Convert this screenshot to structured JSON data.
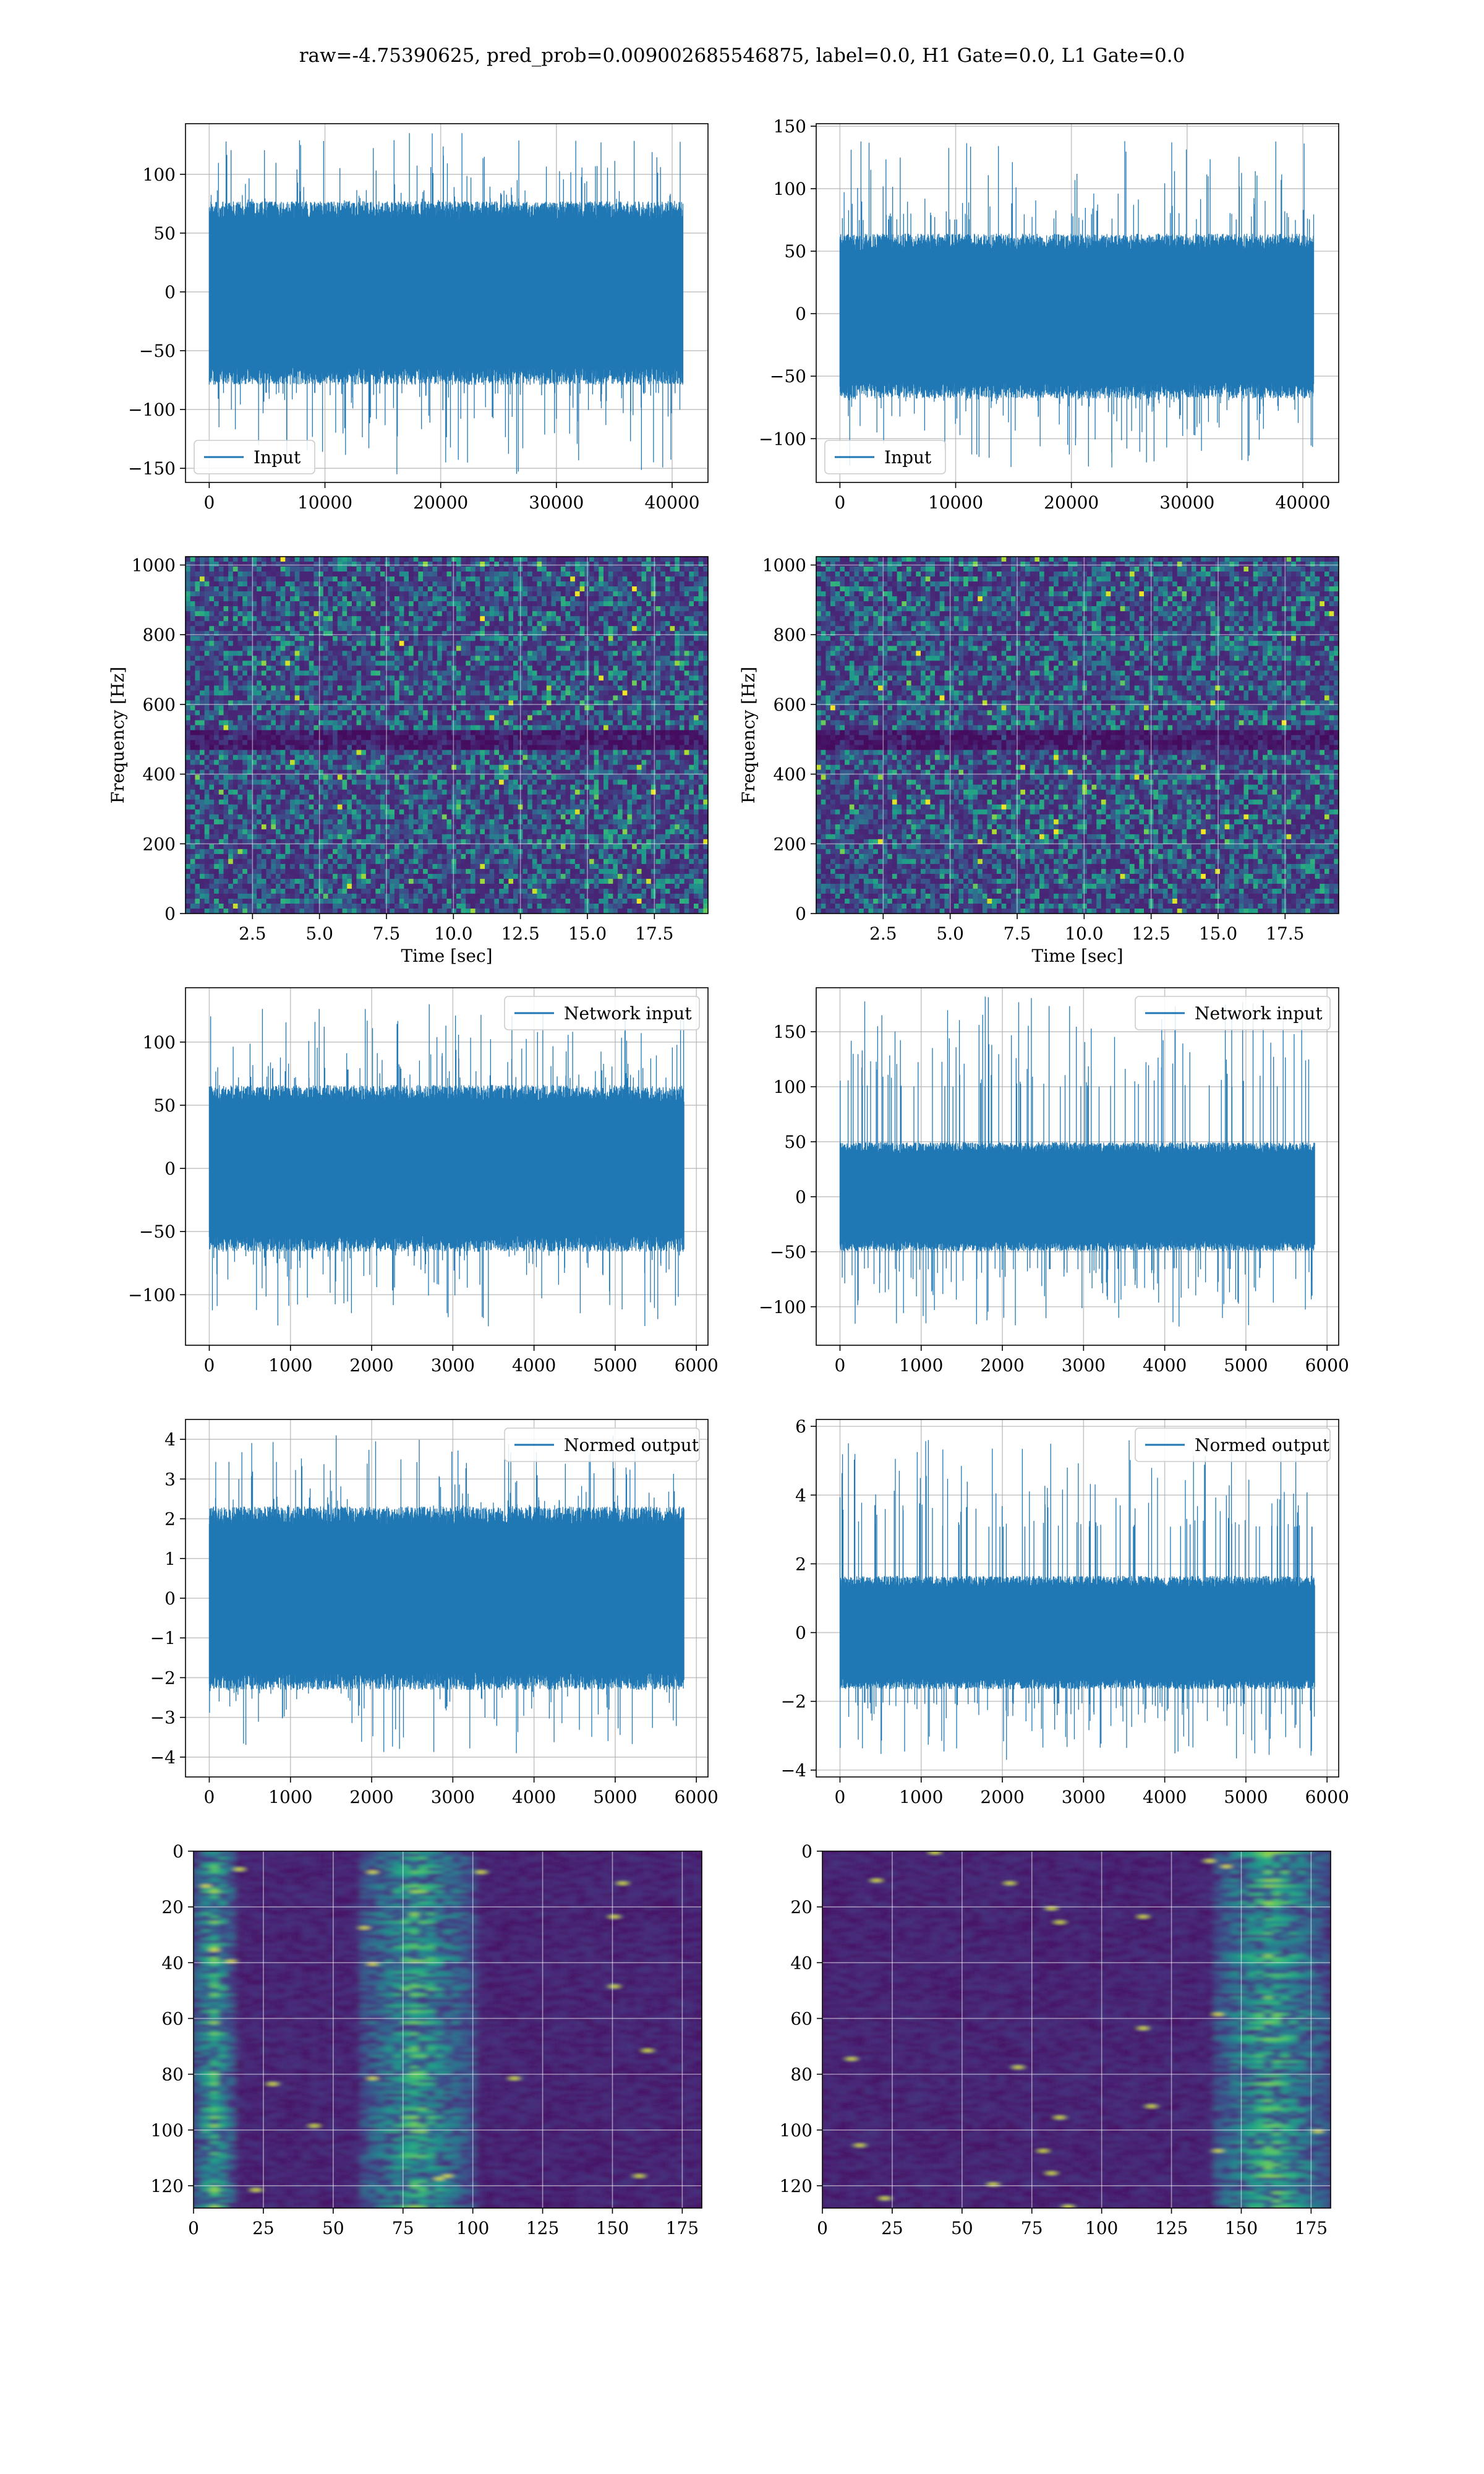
{
  "figure": {
    "suptitle": "raw=-4.75390625, pred_prob=0.009002685546875, label=0.0, H1 Gate=0.0, L1 Gate=0.0"
  },
  "colors": {
    "line": "#1f77b4",
    "grid": "#b0b0b0",
    "viridis_dark": "#440154",
    "viridis_mid": "#21918c",
    "viridis_bright": "#fde725"
  },
  "chart_data": [
    {
      "id": "raw-h1",
      "type": "line",
      "legend": "Input",
      "legend_loc": "lower-left",
      "xlim": [
        -2050,
        43100
      ],
      "ylim": [
        -162,
        143
      ],
      "xticks": [
        0,
        10000,
        20000,
        30000,
        40000
      ],
      "yticks": [
        -150,
        -100,
        -50,
        0,
        50,
        100
      ],
      "xlabel": "",
      "ylabel": "",
      "grid": true,
      "signal": {
        "n": 40960,
        "band": [
          -72,
          70
        ],
        "peaks": [
          -155,
          135
        ]
      }
    },
    {
      "id": "raw-l1",
      "type": "line",
      "legend": "Input",
      "legend_loc": "lower-left",
      "xlim": [
        -2050,
        43100
      ],
      "ylim": [
        -135,
        152
      ],
      "xticks": [
        0,
        10000,
        20000,
        30000,
        40000
      ],
      "yticks": [
        -100,
        -50,
        0,
        50,
        100,
        150
      ],
      "xlabel": "",
      "ylabel": "",
      "grid": true,
      "signal": {
        "n": 40960,
        "band": [
          -62,
          58
        ],
        "peaks": [
          -123,
          138
        ]
      }
    },
    {
      "id": "spec-h1",
      "type": "heatmap",
      "colormap": "viridis",
      "xlim": [
        0,
        19.5
      ],
      "ylim": [
        0,
        1024
      ],
      "xticks": [
        2.5,
        5.0,
        7.5,
        10.0,
        12.5,
        15.0,
        17.5
      ],
      "yticks": [
        0,
        200,
        400,
        600,
        800,
        1000
      ],
      "xlabel": "Time [sec]",
      "ylabel": "Frequency [Hz]",
      "grid": true,
      "dark_band_hz": [
        490,
        510
      ]
    },
    {
      "id": "spec-l1",
      "type": "heatmap",
      "colormap": "viridis",
      "xlim": [
        0,
        19.5
      ],
      "ylim": [
        0,
        1024
      ],
      "xticks": [
        2.5,
        5.0,
        7.5,
        10.0,
        12.5,
        15.0,
        17.5
      ],
      "yticks": [
        0,
        200,
        400,
        600,
        800,
        1000
      ],
      "xlabel": "Time [sec]",
      "ylabel": "Frequency [Hz]",
      "grid": true,
      "dark_band_hz": [
        490,
        510
      ]
    },
    {
      "id": "net-h1",
      "type": "line",
      "legend": "Network input",
      "legend_loc": "upper-right",
      "xlim": [
        -293,
        6143
      ],
      "ylim": [
        -140,
        143
      ],
      "xticks": [
        0,
        1000,
        2000,
        3000,
        4000,
        5000,
        6000
      ],
      "yticks": [
        -100,
        -50,
        0,
        50,
        100
      ],
      "xlabel": "",
      "ylabel": "",
      "grid": true,
      "signal": {
        "n": 5850,
        "band": [
          -60,
          60
        ],
        "peaks": [
          -125,
          130
        ]
      }
    },
    {
      "id": "net-l1",
      "type": "line",
      "legend": "Network input",
      "legend_loc": "upper-right",
      "xlim": [
        -293,
        6143
      ],
      "ylim": [
        -135,
        190
      ],
      "xticks": [
        0,
        1000,
        2000,
        3000,
        4000,
        5000,
        6000
      ],
      "yticks": [
        -100,
        -50,
        0,
        50,
        100,
        150
      ],
      "xlabel": "",
      "ylabel": "",
      "grid": true,
      "signal": {
        "n": 5850,
        "band": [
          -45,
          45
        ],
        "peaks": [
          -118,
          182
        ]
      }
    },
    {
      "id": "norm-h1",
      "type": "line",
      "legend": "Normed output",
      "legend_loc": "upper-right",
      "xlim": [
        -293,
        6143
      ],
      "ylim": [
        -4.5,
        4.5
      ],
      "xticks": [
        0,
        1000,
        2000,
        3000,
        4000,
        5000,
        6000
      ],
      "yticks": [
        -4,
        -3,
        -2,
        -1,
        0,
        1,
        2,
        3,
        4
      ],
      "xlabel": "",
      "ylabel": "",
      "grid": true,
      "signal": {
        "n": 5850,
        "band": [
          -2.1,
          2.1
        ],
        "peaks": [
          -3.9,
          4.1
        ]
      }
    },
    {
      "id": "norm-l1",
      "type": "line",
      "legend": "Normed output",
      "legend_loc": "upper-right",
      "xlim": [
        -293,
        6143
      ],
      "ylim": [
        -4.2,
        6.2
      ],
      "xticks": [
        0,
        1000,
        2000,
        3000,
        4000,
        5000,
        6000
      ],
      "yticks": [
        -4,
        -2,
        0,
        2,
        4,
        6
      ],
      "xlabel": "",
      "ylabel": "",
      "grid": true,
      "signal": {
        "n": 5850,
        "band": [
          -1.5,
          1.5
        ],
        "peaks": [
          -3.7,
          5.6
        ]
      }
    },
    {
      "id": "feat-h1",
      "type": "heatmap",
      "colormap": "viridis",
      "xlim": [
        0,
        182
      ],
      "ylim_inverted": [
        128,
        0
      ],
      "xticks": [
        0,
        25,
        50,
        75,
        100,
        125,
        150,
        175
      ],
      "yticks": [
        0,
        20,
        40,
        60,
        80,
        100,
        120
      ],
      "xlabel": "",
      "ylabel": "",
      "grid": true,
      "bright_columns": [
        [
          0,
          15
        ],
        [
          60,
          100
        ]
      ]
    },
    {
      "id": "feat-l1",
      "type": "heatmap",
      "colormap": "viridis",
      "xlim": [
        0,
        182
      ],
      "ylim_inverted": [
        128,
        0
      ],
      "xticks": [
        0,
        25,
        50,
        75,
        100,
        125,
        150,
        175
      ],
      "yticks": [
        0,
        20,
        40,
        60,
        80,
        100,
        120
      ],
      "xlabel": "",
      "ylabel": "",
      "grid": true,
      "bright_columns": [
        [
          140,
          182
        ]
      ]
    }
  ]
}
